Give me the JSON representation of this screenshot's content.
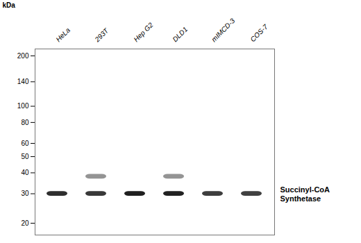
{
  "chart_data": {
    "type": "gel",
    "ylabel": "kDa",
    "categories": [
      "HeLa",
      "293T",
      "Hep G2",
      "DLD1",
      "mIMCD-3",
      "COS-7"
    ],
    "values": [
      30,
      30,
      30,
      30,
      30,
      30
    ],
    "intensities": [
      0.82,
      0.78,
      0.88,
      0.87,
      0.76,
      0.75
    ],
    "extra_bands": [
      {
        "lane": "293T",
        "value": 38,
        "intensity": 0.42
      },
      {
        "lane": "DLD1",
        "value": 38,
        "intensity": 0.42
      }
    ],
    "annotation": {
      "text": "Succinyl-CoA\nSynthetase",
      "y": 30
    },
    "log": "y",
    "ylim": [
      17,
      220
    ],
    "yticks": [
      200,
      140,
      100,
      80,
      60,
      50,
      40,
      30,
      20
    ],
    "grid": false
  }
}
